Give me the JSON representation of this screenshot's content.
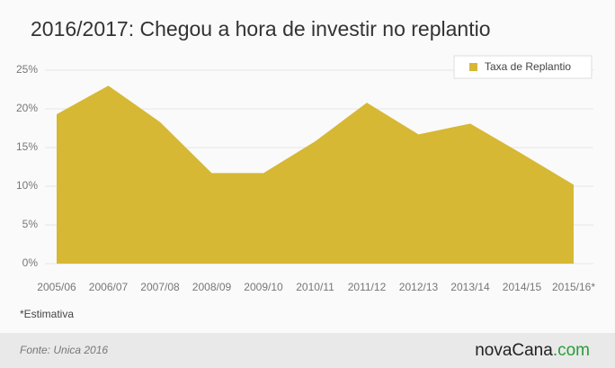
{
  "chart_data": {
    "type": "area",
    "title": "2016/2017: Chegou a hora de investir no replantio",
    "categories": [
      "2005/06",
      "2006/07",
      "2007/08",
      "2008/09",
      "2009/10",
      "2010/11",
      "2011/12",
      "2012/13",
      "2013/14",
      "2014/15",
      "2015/16*"
    ],
    "series": [
      {
        "name": "Taxa de Replantio",
        "color": "#d6b834",
        "values": [
          19.3,
          23.0,
          18.3,
          11.7,
          11.7,
          15.8,
          20.8,
          16.7,
          18.1,
          14.2,
          10.2
        ]
      }
    ],
    "ylim": [
      0,
      25
    ],
    "yticks": [
      {
        "value": 0,
        "label": "0%"
      },
      {
        "value": 5,
        "label": "5%"
      },
      {
        "value": 10,
        "label": "10%"
      },
      {
        "value": 15,
        "label": "15%"
      },
      {
        "value": 20,
        "label": "20%"
      },
      {
        "value": 25,
        "label": "25%"
      }
    ],
    "grid": true,
    "legend": "top-right",
    "footnote": "*Estimativa",
    "source": "Fonte: Unica 2016"
  },
  "logo": {
    "name": "novaCana",
    "domain": ".com"
  }
}
